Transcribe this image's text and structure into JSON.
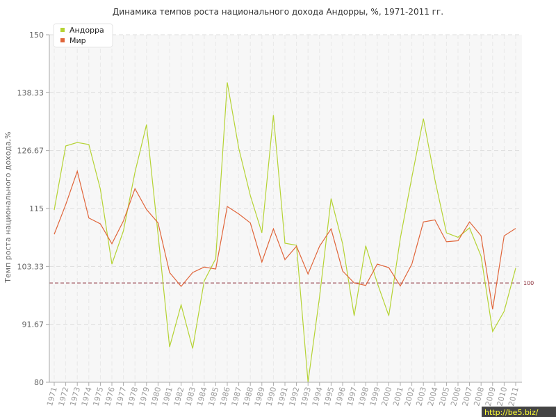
{
  "chart_data": {
    "type": "line",
    "title": "Динамика темпов роста национального дохода Андорры, %, 1971-2011 гг.",
    "ylabel": "Темп роста национального дохода,%",
    "xlabel": "",
    "ylim": [
      80,
      150
    ],
    "yticks": [
      "80",
      "91.67",
      "103.33",
      "115",
      "126.67",
      "138.33",
      "150"
    ],
    "categories": [
      "1971",
      "1972",
      "1973",
      "1974",
      "1975",
      "1976",
      "1977",
      "1978",
      "1979",
      "1980",
      "1981",
      "1982",
      "1983",
      "1984",
      "1985",
      "1986",
      "1987",
      "1988",
      "1989",
      "1990",
      "1991",
      "1992",
      "1993",
      "1994",
      "1995",
      "1996",
      "1997",
      "1998",
      "1999",
      "2000",
      "2001",
      "2002",
      "2003",
      "2004",
      "2005",
      "2006",
      "2007",
      "2008",
      "2009",
      "2010",
      "2011"
    ],
    "series": [
      {
        "name": "Андорра",
        "color": "#b5d334",
        "values": [
          114.7,
          127.6,
          128.3,
          127.9,
          118.9,
          103.8,
          110.5,
          122.3,
          131.9,
          109.8,
          87.1,
          95.6,
          86.8,
          100.4,
          104.9,
          140.4,
          127.1,
          117.6,
          110.1,
          133.8,
          108.0,
          107.6,
          80.0,
          97.2,
          117.0,
          107.9,
          93.4,
          107.5,
          100.0,
          93.4,
          109.0,
          121.3,
          133.1,
          120.8,
          110.1,
          109.2,
          111.1,
          105.4,
          90.2,
          94.3,
          103.0
        ]
      },
      {
        "name": "Мир",
        "color": "#e0653a",
        "values": [
          109.8,
          115.8,
          122.5,
          113.1,
          111.9,
          107.9,
          112.5,
          119.0,
          114.8,
          112.1,
          102.1,
          99.3,
          102.1,
          103.2,
          102.8,
          115.4,
          113.9,
          112.1,
          104.2,
          110.9,
          104.7,
          107.4,
          101.8,
          107.4,
          110.9,
          102.4,
          100.0,
          99.5,
          103.8,
          103.1,
          99.4,
          103.8,
          112.3,
          112.7,
          108.3,
          108.5,
          112.3,
          109.5,
          94.7,
          109.5,
          111.0
        ]
      }
    ],
    "reference_line": {
      "value": 100,
      "label": "100",
      "color": "#8b2e3a"
    },
    "grid": true,
    "legend": "top-left"
  },
  "watermark": "http://be5.biz/"
}
